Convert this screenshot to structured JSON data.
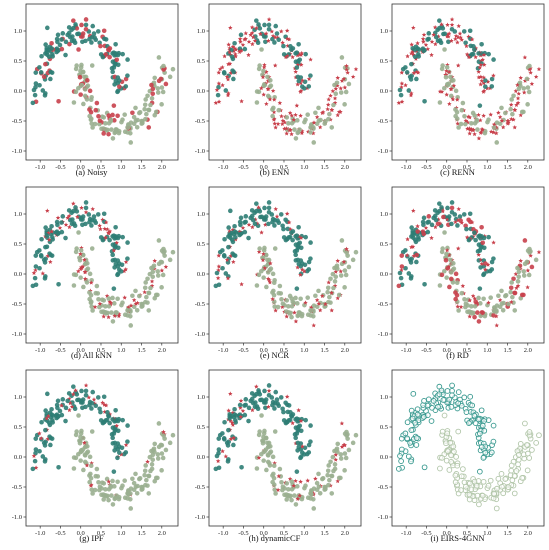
{
  "figure": {
    "captions": [
      "(a) Noisy",
      "(b) ENN",
      "(c) RENN",
      "(d) All kNN",
      "(e) NCR",
      "(f) RD",
      "(g) IPF",
      "(h) dynamicCF",
      "(i) EIRS-4GNN"
    ]
  },
  "colors": {
    "class_a": "#2e7d74",
    "class_b": "#9aaf90",
    "noise_star": "#c8404b",
    "noise_dot": "#c8404b",
    "ring_a": "#3a9a90",
    "ring_b": "#b2c6a9",
    "axis": "#333333"
  },
  "chart_data": [
    {
      "type": "scatter",
      "title": "(a) Noisy",
      "xticks": [
        "-1.0",
        "-0.5",
        "0.0",
        "0.5",
        "1.0",
        "1.5",
        "2.0"
      ],
      "yticks": [
        "-1.0",
        "-0.5",
        "0.0",
        "0.5",
        "1.0"
      ],
      "xlim": [
        -1.35,
        2.4
      ],
      "ylim": [
        -1.15,
        1.45
      ],
      "mode": "noisy"
    },
    {
      "type": "scatter",
      "title": "(b) ENN",
      "xticks": [
        "-1.0",
        "-0.5",
        "0.0",
        "0.5",
        "1.0",
        "1.5",
        "2.0"
      ],
      "yticks": [
        "-1.0",
        "-0.5",
        "0.0",
        "0.5",
        "1.0"
      ],
      "xlim": [
        -1.35,
        2.4
      ],
      "ylim": [
        -1.15,
        1.45
      ],
      "mode": "enn"
    },
    {
      "type": "scatter",
      "title": "(c) RENN",
      "xticks": [
        "-1.0",
        "-0.5",
        "0.0",
        "0.5",
        "1.0",
        "1.5",
        "2.0"
      ],
      "yticks": [
        "-1.0",
        "-0.5",
        "0.0",
        "0.5",
        "1.0"
      ],
      "xlim": [
        -1.35,
        2.4
      ],
      "ylim": [
        -1.15,
        1.45
      ],
      "mode": "enn"
    },
    {
      "type": "scatter",
      "title": "(d) All kNN",
      "xticks": [
        "-1.0",
        "-0.5",
        "0.0",
        "0.5",
        "1.0",
        "1.5",
        "2.0"
      ],
      "yticks": [
        "-1.0",
        "-0.5",
        "0.0",
        "0.5",
        "1.0"
      ],
      "xlim": [
        -1.35,
        2.4
      ],
      "ylim": [
        -1.15,
        1.45
      ],
      "mode": "mixed"
    },
    {
      "type": "scatter",
      "title": "(e) NCR",
      "xticks": [
        "-1.0",
        "-0.5",
        "0.0",
        "0.5",
        "1.0",
        "1.5",
        "2.0"
      ],
      "yticks": [
        "-1.0",
        "-0.5",
        "0.0",
        "0.5",
        "1.0"
      ],
      "xlim": [
        -1.35,
        2.4
      ],
      "ylim": [
        -1.15,
        1.45
      ],
      "mode": "mixed"
    },
    {
      "type": "scatter",
      "title": "(f) RD",
      "xticks": [
        "-1.0",
        "-0.5",
        "0.0",
        "0.5",
        "1.0",
        "1.5",
        "2.0"
      ],
      "yticks": [
        "-1.0",
        "-0.5",
        "0.0",
        "0.5",
        "1.0"
      ],
      "xlim": [
        -1.35,
        2.4
      ],
      "ylim": [
        -1.15,
        1.45
      ],
      "mode": "rd"
    },
    {
      "type": "scatter",
      "title": "(g) IPF",
      "xticks": [
        "-1.0",
        "-0.5",
        "0.0",
        "0.5",
        "1.0",
        "1.5",
        "2.0"
      ],
      "yticks": [
        "-1.0",
        "-0.5",
        "0.0",
        "0.5",
        "1.0"
      ],
      "xlim": [
        -1.35,
        2.4
      ],
      "ylim": [
        -1.15,
        1.45
      ],
      "mode": "filtered"
    },
    {
      "type": "scatter",
      "title": "(h) dynamicCF",
      "xticks": [
        "-1.0",
        "-0.5",
        "0.0",
        "0.5",
        "1.0",
        "1.5",
        "2.0"
      ],
      "yticks": [
        "-1.0",
        "-0.5",
        "0.0",
        "0.5",
        "1.0"
      ],
      "xlim": [
        -1.35,
        2.4
      ],
      "ylim": [
        -1.15,
        1.45
      ],
      "mode": "filtered"
    },
    {
      "type": "scatter",
      "title": "(i) EIRS-4GNN",
      "xticks": [
        "-1.0",
        "-0.5",
        "0.0",
        "0.5",
        "1.0",
        "1.5",
        "2.0"
      ],
      "yticks": [
        "-1.0",
        "-0.5",
        "0.0",
        "0.5",
        "1.0"
      ],
      "xlim": [
        -1.35,
        2.4
      ],
      "ylim": [
        -1.15,
        1.45
      ],
      "mode": "rings"
    }
  ]
}
